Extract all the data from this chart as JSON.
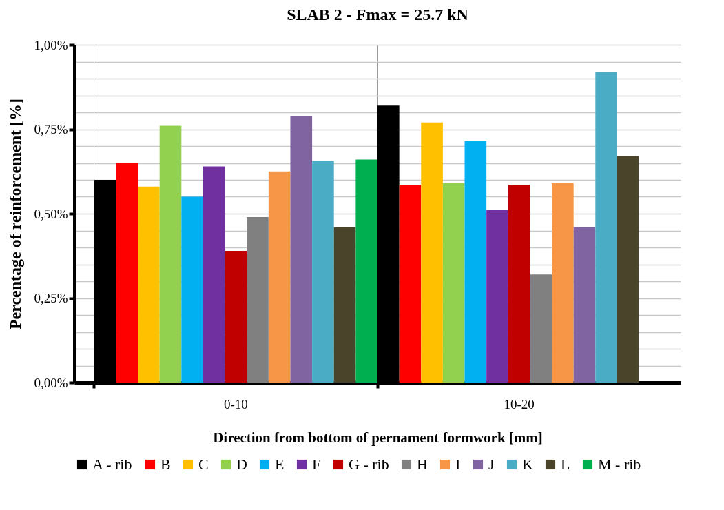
{
  "chart_data": {
    "type": "bar",
    "title": "SLAB 2 - Fmax = 25.7 kN",
    "xlabel": "Direction from bottom of pernament formwork [mm]",
    "ylabel": "Percentage of reinforcement [%]",
    "categories": [
      "0-10",
      "10-20"
    ],
    "series": [
      {
        "name": "A - rib",
        "color": "#000000",
        "values": [
          0.6,
          0.82
        ]
      },
      {
        "name": "B",
        "color": "#ff0000",
        "values": [
          0.65,
          0.585
        ]
      },
      {
        "name": "C",
        "color": "#ffc000",
        "values": [
          0.58,
          0.77
        ]
      },
      {
        "name": "D",
        "color": "#92d050",
        "values": [
          0.76,
          0.59
        ]
      },
      {
        "name": "E",
        "color": "#00b0f0",
        "values": [
          0.55,
          0.715
        ]
      },
      {
        "name": "F",
        "color": "#7030a0",
        "values": [
          0.64,
          0.51
        ]
      },
      {
        "name": "G - rib",
        "color": "#c00000",
        "values": [
          0.39,
          0.585
        ]
      },
      {
        "name": "H",
        "color": "#808080",
        "values": [
          0.49,
          0.32
        ]
      },
      {
        "name": "I",
        "color": "#f79646",
        "values": [
          0.625,
          0.59
        ]
      },
      {
        "name": "J",
        "color": "#8064a2",
        "values": [
          0.79,
          0.46
        ]
      },
      {
        "name": "K",
        "color": "#4bacc6",
        "values": [
          0.655,
          0.92
        ]
      },
      {
        "name": "L",
        "color": "#4a452a",
        "values": [
          0.46,
          0.67
        ]
      },
      {
        "name": "M - rib",
        "color": "#00b050",
        "values": [
          0.66,
          null
        ]
      }
    ],
    "ylim": [
      0,
      1
    ],
    "yticks": [
      {
        "value": 0,
        "label": "0,00%"
      },
      {
        "value": 0.05,
        "label": null
      },
      {
        "value": 0.1,
        "label": null
      },
      {
        "value": 0.15,
        "label": null
      },
      {
        "value": 0.2,
        "label": null
      },
      {
        "value": 0.25,
        "label": "0,25%"
      },
      {
        "value": 0.3,
        "label": null
      },
      {
        "value": 0.35,
        "label": null
      },
      {
        "value": 0.4,
        "label": null
      },
      {
        "value": 0.45,
        "label": null
      },
      {
        "value": 0.5,
        "label": "0,50%"
      },
      {
        "value": 0.55,
        "label": null
      },
      {
        "value": 0.6,
        "label": null
      },
      {
        "value": 0.65,
        "label": null
      },
      {
        "value": 0.7,
        "label": null
      },
      {
        "value": 0.75,
        "label": "0,75%"
      },
      {
        "value": 0.8,
        "label": null
      },
      {
        "value": 0.85,
        "label": null
      },
      {
        "value": 0.9,
        "label": null
      },
      {
        "value": 0.95,
        "label": null
      },
      {
        "value": 1,
        "label": "1,00%"
      }
    ],
    "grid": true,
    "legend": "bottom"
  }
}
